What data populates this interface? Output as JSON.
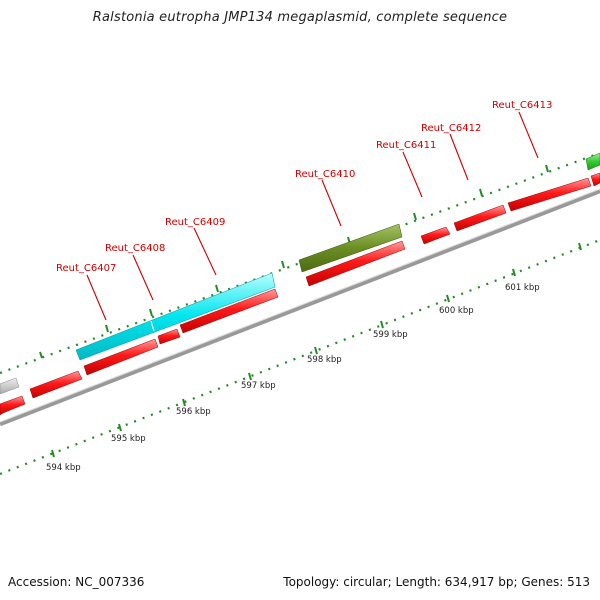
{
  "title": "Ralstonia eutropha JMP134 megaplasmid, complete sequence",
  "accession": "Accession: NC_007336",
  "summary": "Topology: circular; Length: 634,917 bp; Genes: 513",
  "gene_labels": [
    "Reut_C6407",
    "Reut_C6408",
    "Reut_C6409",
    "Reut_C6410",
    "Reut_C6411",
    "Reut_C6412",
    "Reut_C6413"
  ],
  "scale_labels": [
    "594 kbp",
    "595 kbp",
    "596 kbp",
    "597 kbp",
    "598 kbp",
    "599 kbp",
    "600 kbp",
    "601 kbp"
  ],
  "colors": {
    "forward_gene": "#ff1a1a",
    "backbone": "#8c8c8c",
    "label_red": "#cc0000",
    "cyan_feature": "#00e5ee",
    "olive_feature": "#6b8e23",
    "green_feature": "#33cc33",
    "grey_feature": "#bbbbbb",
    "tick_green": "#228b22"
  }
}
